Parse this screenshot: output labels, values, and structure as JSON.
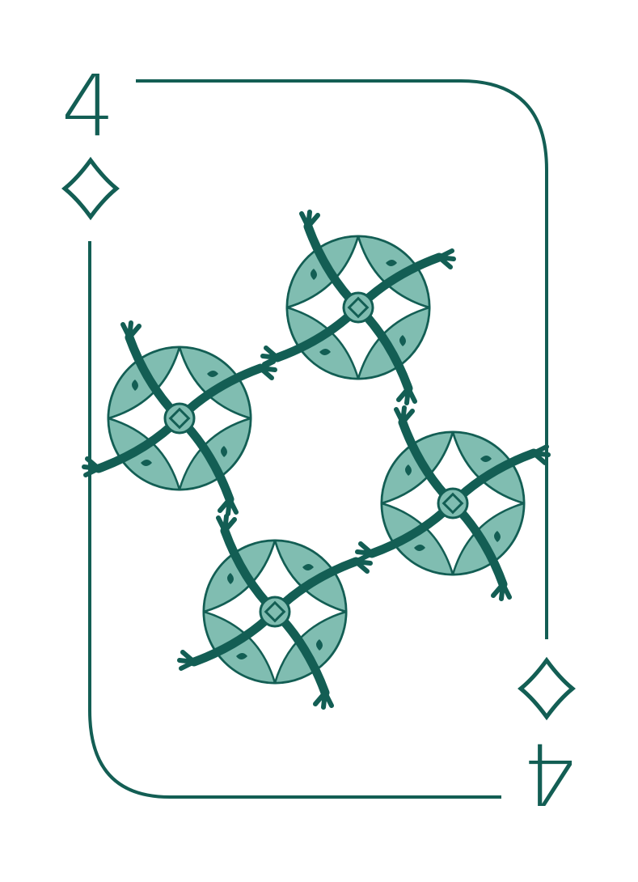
{
  "card": {
    "rank": "4",
    "suit": "diamonds",
    "suit_icon": "diamond-icon",
    "pip_ornament": "rosette-icon",
    "pip_count": 4,
    "colors": {
      "ink": "#135e54",
      "fill": "#80bdb1",
      "background": "#ffffff"
    }
  }
}
